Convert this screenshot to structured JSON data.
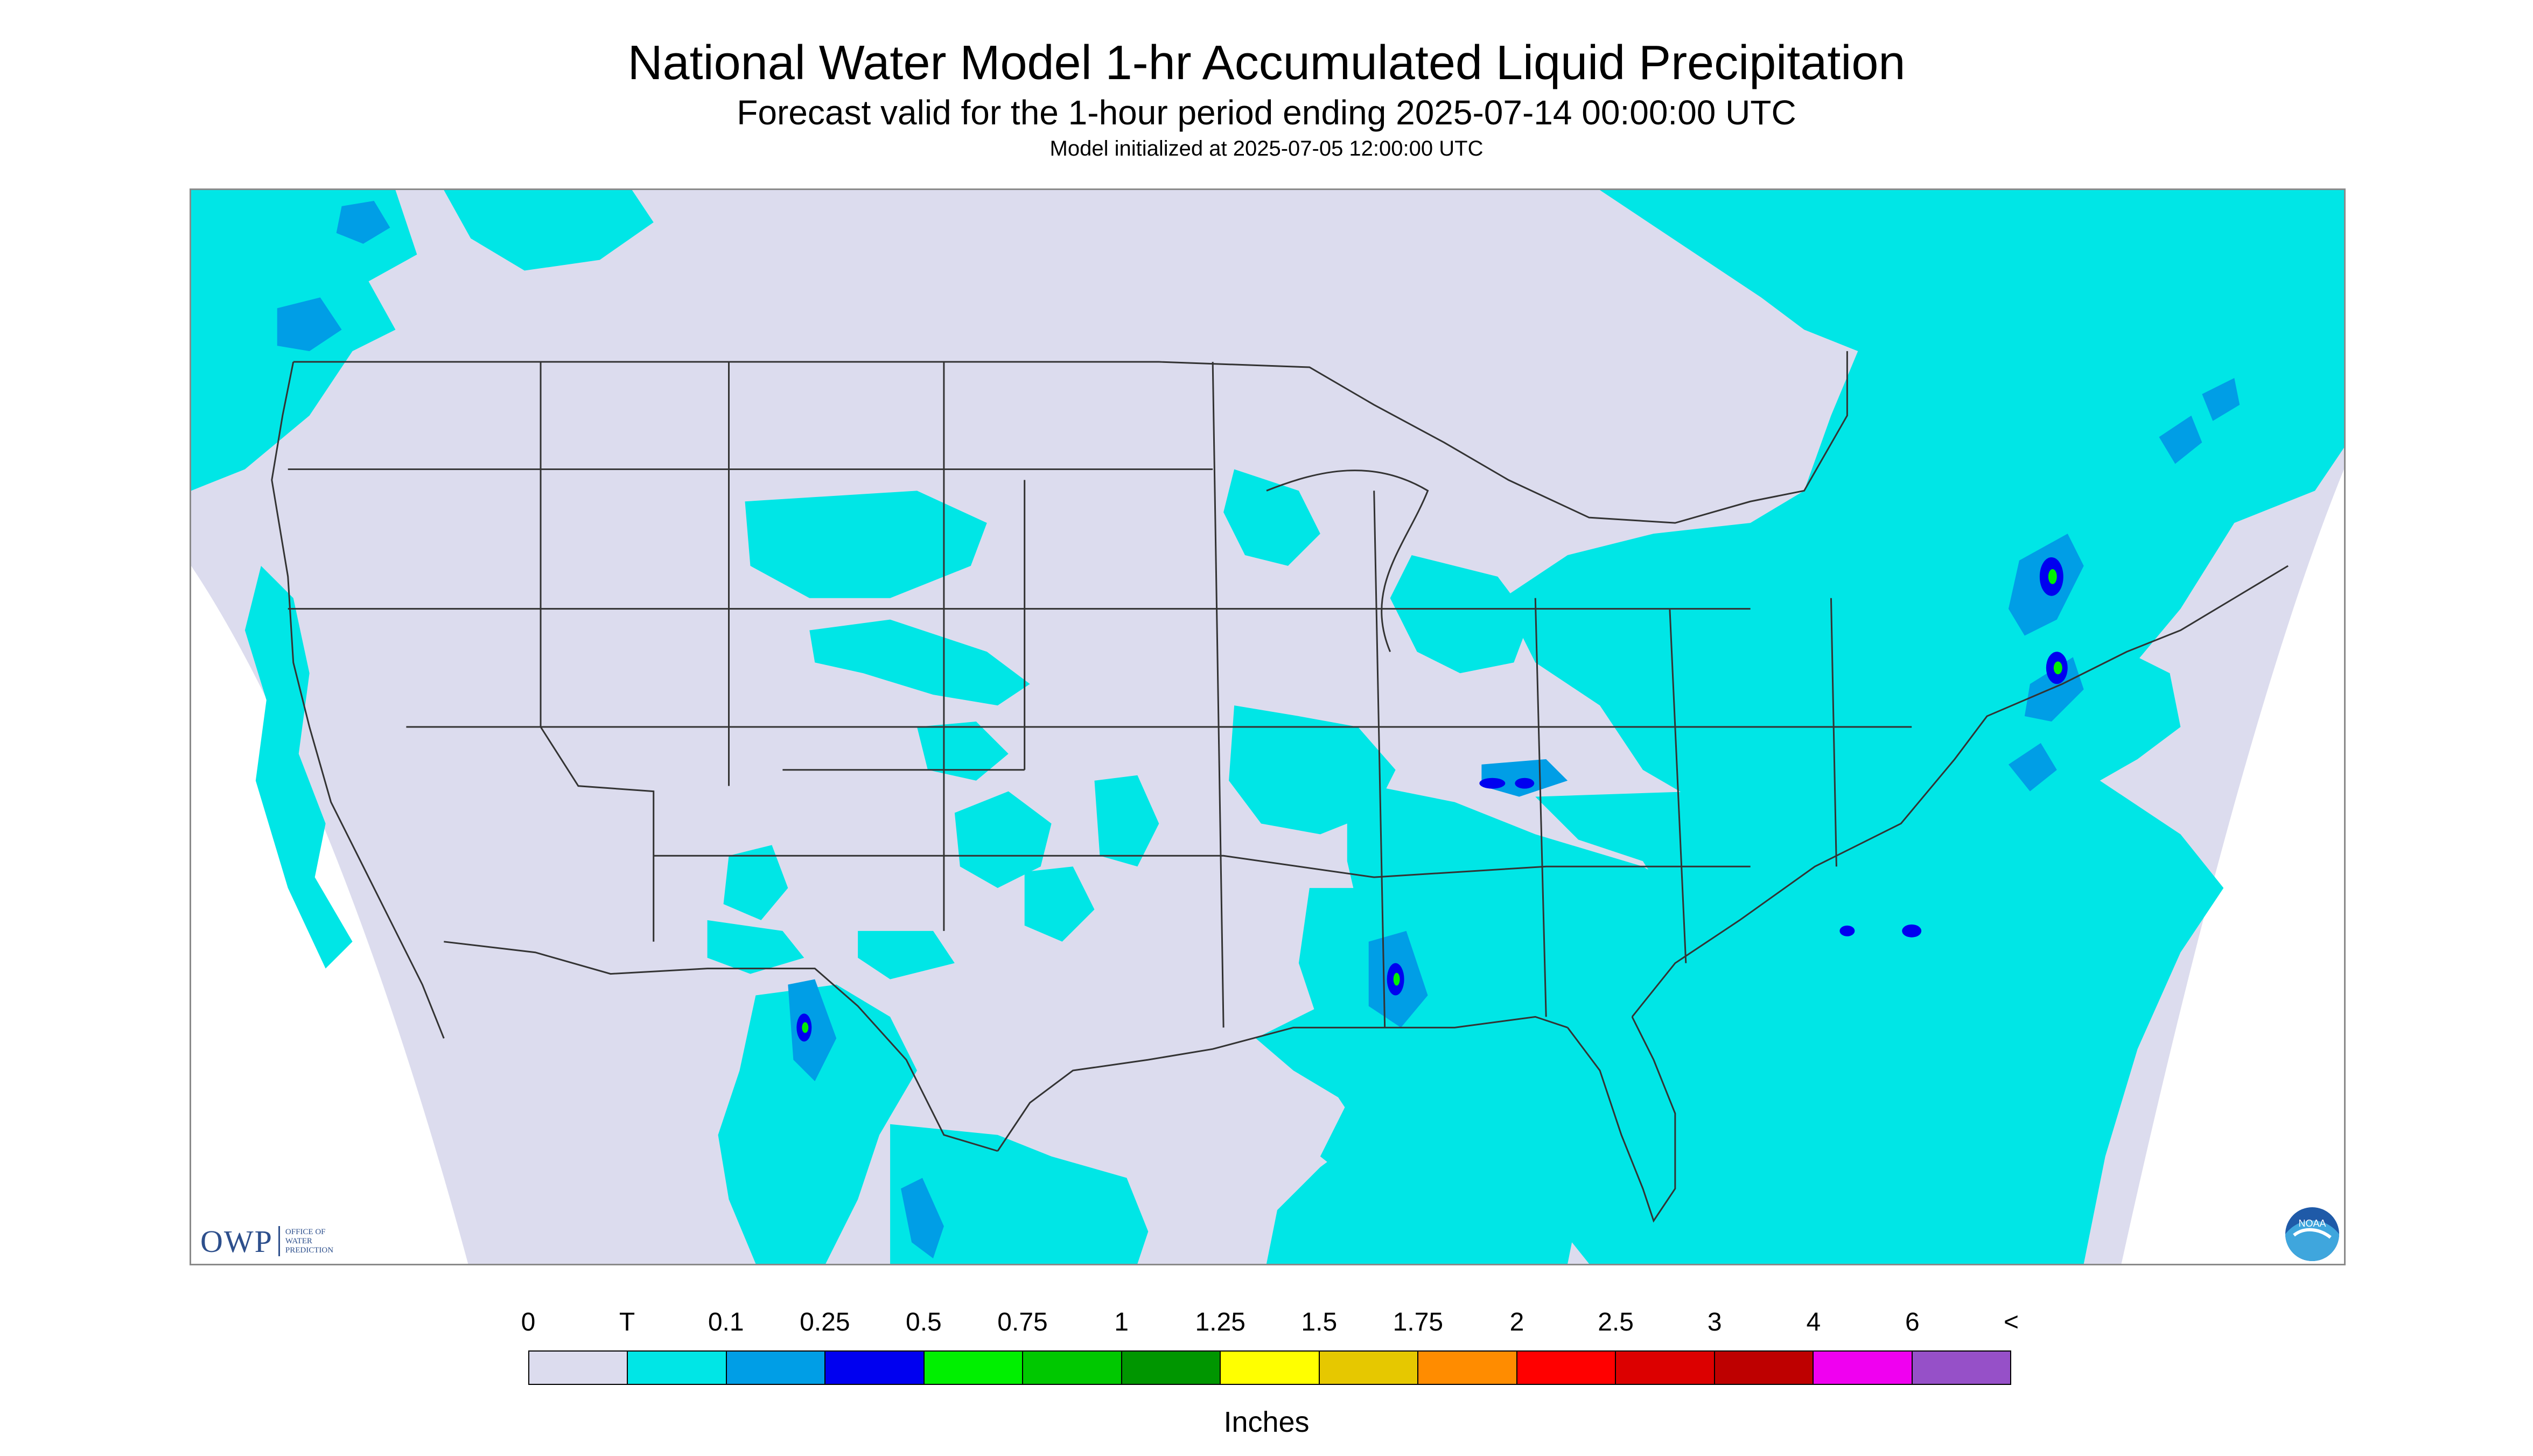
{
  "title": "National Water Model 1-hr Accumulated Liquid Precipitation",
  "subtitle": "Forecast valid for the 1-hour period ending 2025-07-14 00:00:00 UTC",
  "init_line": "Model initialized at 2025-07-05 12:00:00 UTC",
  "logos": {
    "owp_mark": "OWP",
    "owp_text_lines": [
      "OFFICE OF",
      "WATER",
      "PREDICTION"
    ],
    "noaa_text": "NOAA"
  },
  "legend": {
    "units_label": "Inches",
    "tick_labels": [
      "0",
      "T",
      "0.1",
      "0.25",
      "0.5",
      "0.75",
      "1",
      "1.25",
      "1.5",
      "1.75",
      "2",
      "2.5",
      "3",
      "4",
      "6",
      "<"
    ],
    "colors": [
      "#dcdcee",
      "#00e6e6",
      "#009ee6",
      "#0000f0",
      "#00f000",
      "#00c800",
      "#009600",
      "#ffff00",
      "#e6c800",
      "#ff8c00",
      "#ff0000",
      "#dc0000",
      "#be0000",
      "#f000f0",
      "#9650c8"
    ]
  },
  "map_colors": {
    "no_data": "#ffffff",
    "zero": "#dcdcee",
    "trace": "#00e6e6",
    "light": "#009ee6",
    "moderate": "#0000f0",
    "heavy": "#00f000",
    "borders": "#333333"
  }
}
